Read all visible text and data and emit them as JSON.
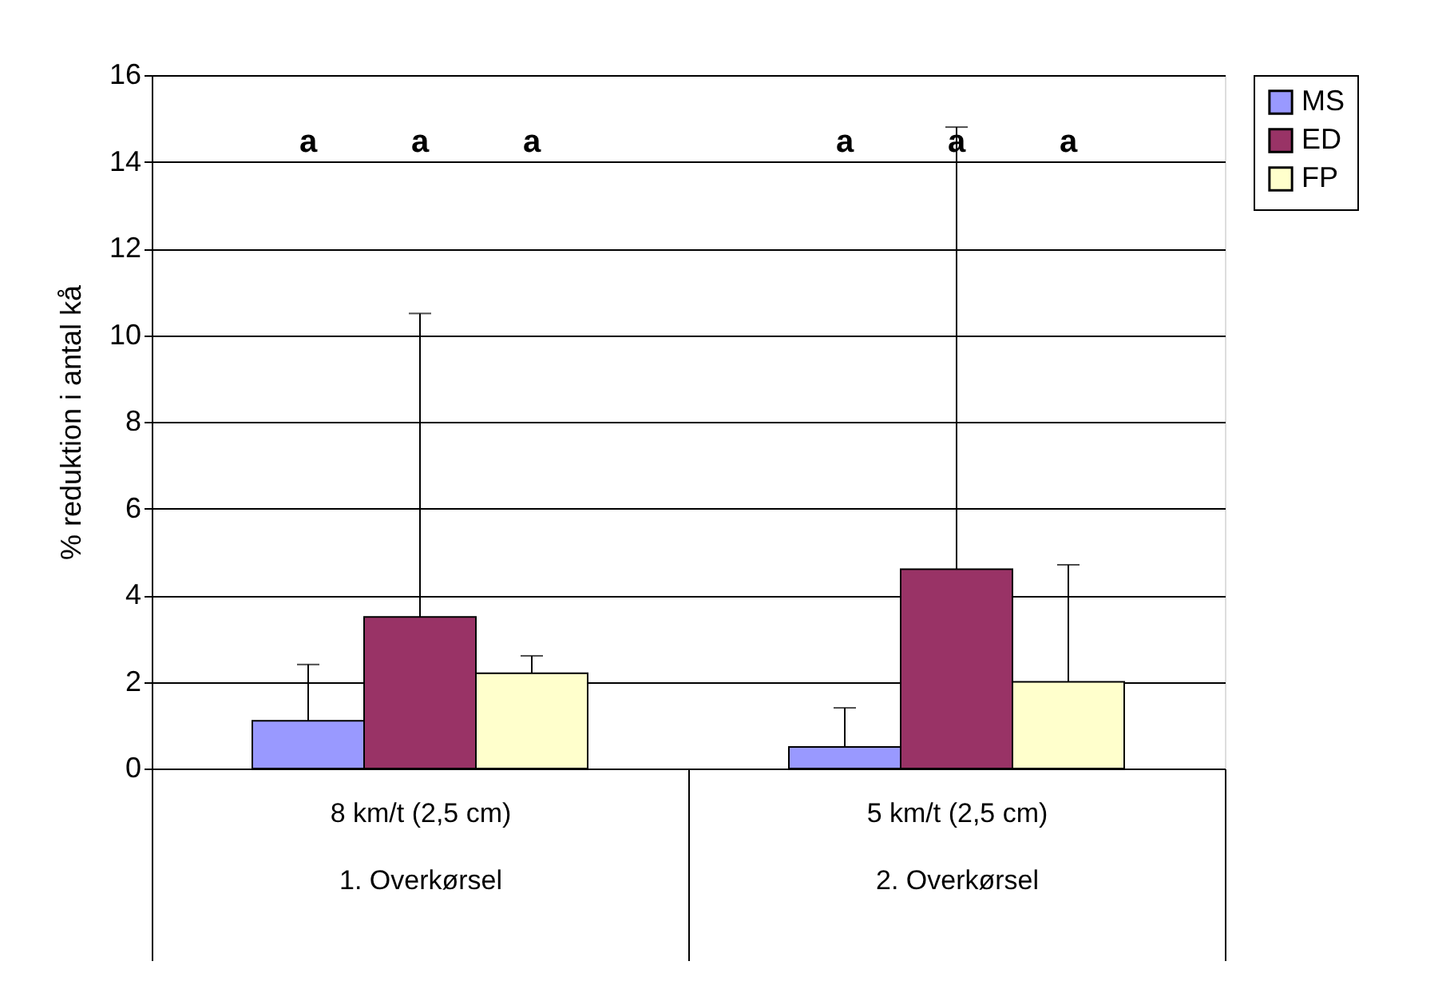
{
  "chart_data": {
    "type": "bar",
    "ylabel": "% reduktion i antal kå",
    "categories": [
      "8 km/t (2,5 cm)\n1. Overkørsel",
      "5 km/t (2,5 cm)\n2. Overkørsel"
    ],
    "series": [
      {
        "name": "MS",
        "color": "#9999ff",
        "values": [
          1.1,
          0.5
        ],
        "errors": [
          [
            1.1,
            2.4
          ],
          [
            0.5,
            1.4
          ]
        ]
      },
      {
        "name": "ED",
        "color": "#993366",
        "values": [
          3.5,
          4.6
        ],
        "errors": [
          [
            3.5,
            10.5
          ],
          [
            4.6,
            14.8
          ]
        ]
      },
      {
        "name": "FP",
        "color": "#ffffcc",
        "values": [
          2.2,
          2.0
        ],
        "errors": [
          [
            2.2,
            2.6
          ],
          [
            2.0,
            4.7
          ]
        ]
      }
    ],
    "ylim": [
      0,
      16
    ],
    "yticks": [
      0,
      2,
      4,
      6,
      8,
      10,
      12,
      14,
      16
    ],
    "grid": "y",
    "legend": "right",
    "annotations": [
      "a",
      "a",
      "a",
      "a",
      "a",
      "a"
    ]
  }
}
